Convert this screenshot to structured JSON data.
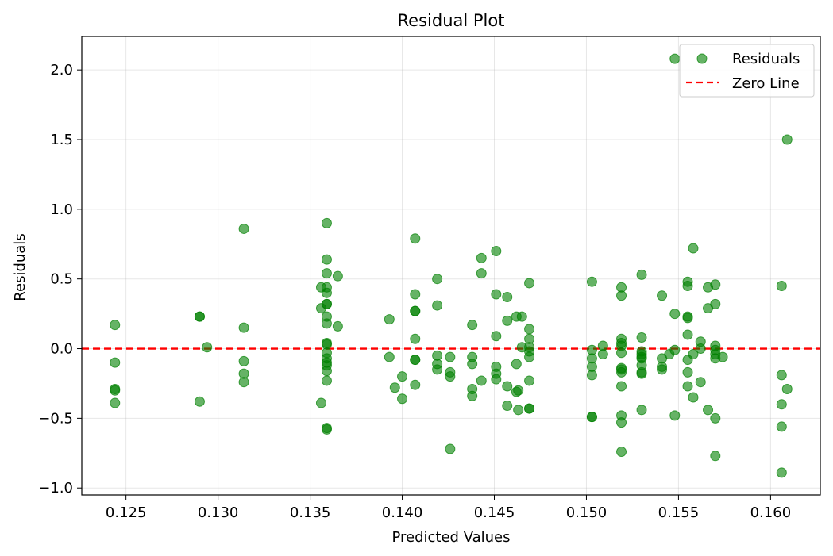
{
  "chart_data": {
    "type": "scatter",
    "title": "Residual Plot",
    "xlabel": "Predicted Values",
    "ylabel": "Residuals",
    "xlim": [
      0.1226,
      0.1627
    ],
    "ylim": [
      -1.05,
      2.24
    ],
    "xticks": [
      0.125,
      0.13,
      0.135,
      0.14,
      0.145,
      0.15,
      0.155,
      0.16
    ],
    "xtick_labels": [
      "0.125",
      "0.130",
      "0.135",
      "0.140",
      "0.145",
      "0.150",
      "0.155",
      "0.160"
    ],
    "yticks": [
      -1.0,
      -0.5,
      0.0,
      0.5,
      1.0,
      1.5,
      2.0
    ],
    "ytick_labels": [
      "−1.0",
      "−0.5",
      "0.0",
      "0.5",
      "1.0",
      "1.5",
      "2.0"
    ],
    "grid": true,
    "legend_position": "top-right",
    "series": [
      {
        "name": "Residuals",
        "color": "#008000",
        "marker": "circle",
        "opacity": 0.6,
        "points": [
          [
            0.1244,
            0.17
          ],
          [
            0.1244,
            -0.1
          ],
          [
            0.1244,
            -0.29
          ],
          [
            0.1244,
            -0.3
          ],
          [
            0.1244,
            -0.39
          ],
          [
            0.129,
            0.23
          ],
          [
            0.129,
            0.23
          ],
          [
            0.129,
            -0.38
          ],
          [
            0.1294,
            0.01
          ],
          [
            0.1314,
            0.86
          ],
          [
            0.1314,
            0.15
          ],
          [
            0.1314,
            -0.09
          ],
          [
            0.1314,
            -0.18
          ],
          [
            0.1314,
            -0.24
          ],
          [
            0.1356,
            0.44
          ],
          [
            0.1356,
            0.29
          ],
          [
            0.1356,
            -0.39
          ],
          [
            0.1359,
            0.9
          ],
          [
            0.1359,
            0.64
          ],
          [
            0.1359,
            0.54
          ],
          [
            0.1359,
            0.44
          ],
          [
            0.1359,
            0.4
          ],
          [
            0.1359,
            0.32
          ],
          [
            0.1359,
            0.32
          ],
          [
            0.1359,
            0.23
          ],
          [
            0.1359,
            0.18
          ],
          [
            0.1359,
            0.04
          ],
          [
            0.1359,
            0.03
          ],
          [
            0.1359,
            -0.03
          ],
          [
            0.1359,
            -0.07
          ],
          [
            0.1359,
            -0.1
          ],
          [
            0.1359,
            -0.12
          ],
          [
            0.1359,
            -0.16
          ],
          [
            0.1359,
            -0.23
          ],
          [
            0.1359,
            -0.57
          ],
          [
            0.1359,
            -0.58
          ],
          [
            0.1365,
            0.52
          ],
          [
            0.1365,
            0.16
          ],
          [
            0.1393,
            0.21
          ],
          [
            0.1393,
            -0.06
          ],
          [
            0.1396,
            -0.28
          ],
          [
            0.14,
            -0.2
          ],
          [
            0.14,
            -0.36
          ],
          [
            0.1407,
            0.79
          ],
          [
            0.1407,
            0.39
          ],
          [
            0.1407,
            0.27
          ],
          [
            0.1407,
            0.27
          ],
          [
            0.1407,
            0.07
          ],
          [
            0.1407,
            -0.08
          ],
          [
            0.1407,
            -0.08
          ],
          [
            0.1407,
            -0.26
          ],
          [
            0.1419,
            0.5
          ],
          [
            0.1419,
            0.31
          ],
          [
            0.1419,
            -0.05
          ],
          [
            0.1419,
            -0.11
          ],
          [
            0.1419,
            -0.15
          ],
          [
            0.1426,
            -0.06
          ],
          [
            0.1426,
            -0.17
          ],
          [
            0.1426,
            -0.2
          ],
          [
            0.1426,
            -0.72
          ],
          [
            0.1438,
            0.17
          ],
          [
            0.1438,
            -0.06
          ],
          [
            0.1438,
            -0.11
          ],
          [
            0.1438,
            -0.29
          ],
          [
            0.1438,
            -0.34
          ],
          [
            0.1443,
            0.65
          ],
          [
            0.1443,
            0.54
          ],
          [
            0.1443,
            -0.23
          ],
          [
            0.1451,
            0.7
          ],
          [
            0.1451,
            0.39
          ],
          [
            0.1451,
            0.09
          ],
          [
            0.1451,
            -0.13
          ],
          [
            0.1451,
            -0.18
          ],
          [
            0.1451,
            -0.22
          ],
          [
            0.1457,
            0.37
          ],
          [
            0.1457,
            0.2
          ],
          [
            0.1457,
            -0.27
          ],
          [
            0.1457,
            -0.41
          ],
          [
            0.1462,
            0.23
          ],
          [
            0.1462,
            -0.11
          ],
          [
            0.1462,
            -0.31
          ],
          [
            0.1463,
            -0.3
          ],
          [
            0.1463,
            -0.44
          ],
          [
            0.1465,
            0.23
          ],
          [
            0.1465,
            0.01
          ],
          [
            0.1469,
            0.47
          ],
          [
            0.1469,
            0.14
          ],
          [
            0.1469,
            0.07
          ],
          [
            0.1469,
            0.01
          ],
          [
            0.1469,
            -0.02
          ],
          [
            0.1469,
            -0.06
          ],
          [
            0.1469,
            -0.23
          ],
          [
            0.1469,
            -0.43
          ],
          [
            0.1469,
            -0.43
          ],
          [
            0.1503,
            0.48
          ],
          [
            0.1503,
            -0.01
          ],
          [
            0.1503,
            -0.07
          ],
          [
            0.1503,
            -0.13
          ],
          [
            0.1503,
            -0.19
          ],
          [
            0.1503,
            -0.49
          ],
          [
            0.1503,
            -0.49
          ],
          [
            0.1509,
            0.02
          ],
          [
            0.1509,
            -0.04
          ],
          [
            0.1519,
            0.44
          ],
          [
            0.1519,
            0.38
          ],
          [
            0.1519,
            0.07
          ],
          [
            0.1519,
            0.04
          ],
          [
            0.1519,
            0.02
          ],
          [
            0.1519,
            -0.03
          ],
          [
            0.1519,
            -0.14
          ],
          [
            0.1519,
            -0.15
          ],
          [
            0.1519,
            -0.17
          ],
          [
            0.1519,
            -0.27
          ],
          [
            0.1519,
            -0.48
          ],
          [
            0.1519,
            -0.53
          ],
          [
            0.1519,
            -0.74
          ],
          [
            0.153,
            0.53
          ],
          [
            0.153,
            0.08
          ],
          [
            0.153,
            -0.02
          ],
          [
            0.153,
            -0.04
          ],
          [
            0.153,
            -0.06
          ],
          [
            0.153,
            -0.07
          ],
          [
            0.153,
            -0.12
          ],
          [
            0.153,
            -0.17
          ],
          [
            0.153,
            -0.18
          ],
          [
            0.153,
            -0.44
          ],
          [
            0.1541,
            0.38
          ],
          [
            0.1541,
            -0.07
          ],
          [
            0.1541,
            -0.13
          ],
          [
            0.1541,
            -0.15
          ],
          [
            0.1545,
            -0.04
          ],
          [
            0.1548,
            2.08
          ],
          [
            0.1548,
            0.25
          ],
          [
            0.1548,
            -0.01
          ],
          [
            0.1548,
            -0.48
          ],
          [
            0.1555,
            0.48
          ],
          [
            0.1555,
            0.45
          ],
          [
            0.1555,
            0.22
          ],
          [
            0.1555,
            0.23
          ],
          [
            0.1555,
            0.1
          ],
          [
            0.1555,
            -0.08
          ],
          [
            0.1555,
            -0.17
          ],
          [
            0.1555,
            -0.27
          ],
          [
            0.1558,
            0.72
          ],
          [
            0.1558,
            -0.04
          ],
          [
            0.1558,
            -0.35
          ],
          [
            0.1562,
            0.05
          ],
          [
            0.1562,
            0.0
          ],
          [
            0.1562,
            -0.24
          ],
          [
            0.1566,
            0.44
          ],
          [
            0.1566,
            0.29
          ],
          [
            0.1566,
            -0.44
          ],
          [
            0.157,
            0.46
          ],
          [
            0.157,
            0.32
          ],
          [
            0.157,
            0.02
          ],
          [
            0.157,
            -0.01
          ],
          [
            0.157,
            -0.04
          ],
          [
            0.157,
            -0.07
          ],
          [
            0.157,
            -0.5
          ],
          [
            0.157,
            -0.77
          ],
          [
            0.1574,
            -0.06
          ],
          [
            0.1606,
            0.45
          ],
          [
            0.1606,
            -0.19
          ],
          [
            0.1606,
            -0.4
          ],
          [
            0.1606,
            -0.56
          ],
          [
            0.1606,
            -0.89
          ],
          [
            0.1609,
            1.5
          ],
          [
            0.1609,
            -0.29
          ]
        ]
      },
      {
        "name": "Zero Line",
        "type": "line",
        "color": "#ff0000",
        "style": "dashed",
        "y": 0
      }
    ]
  }
}
